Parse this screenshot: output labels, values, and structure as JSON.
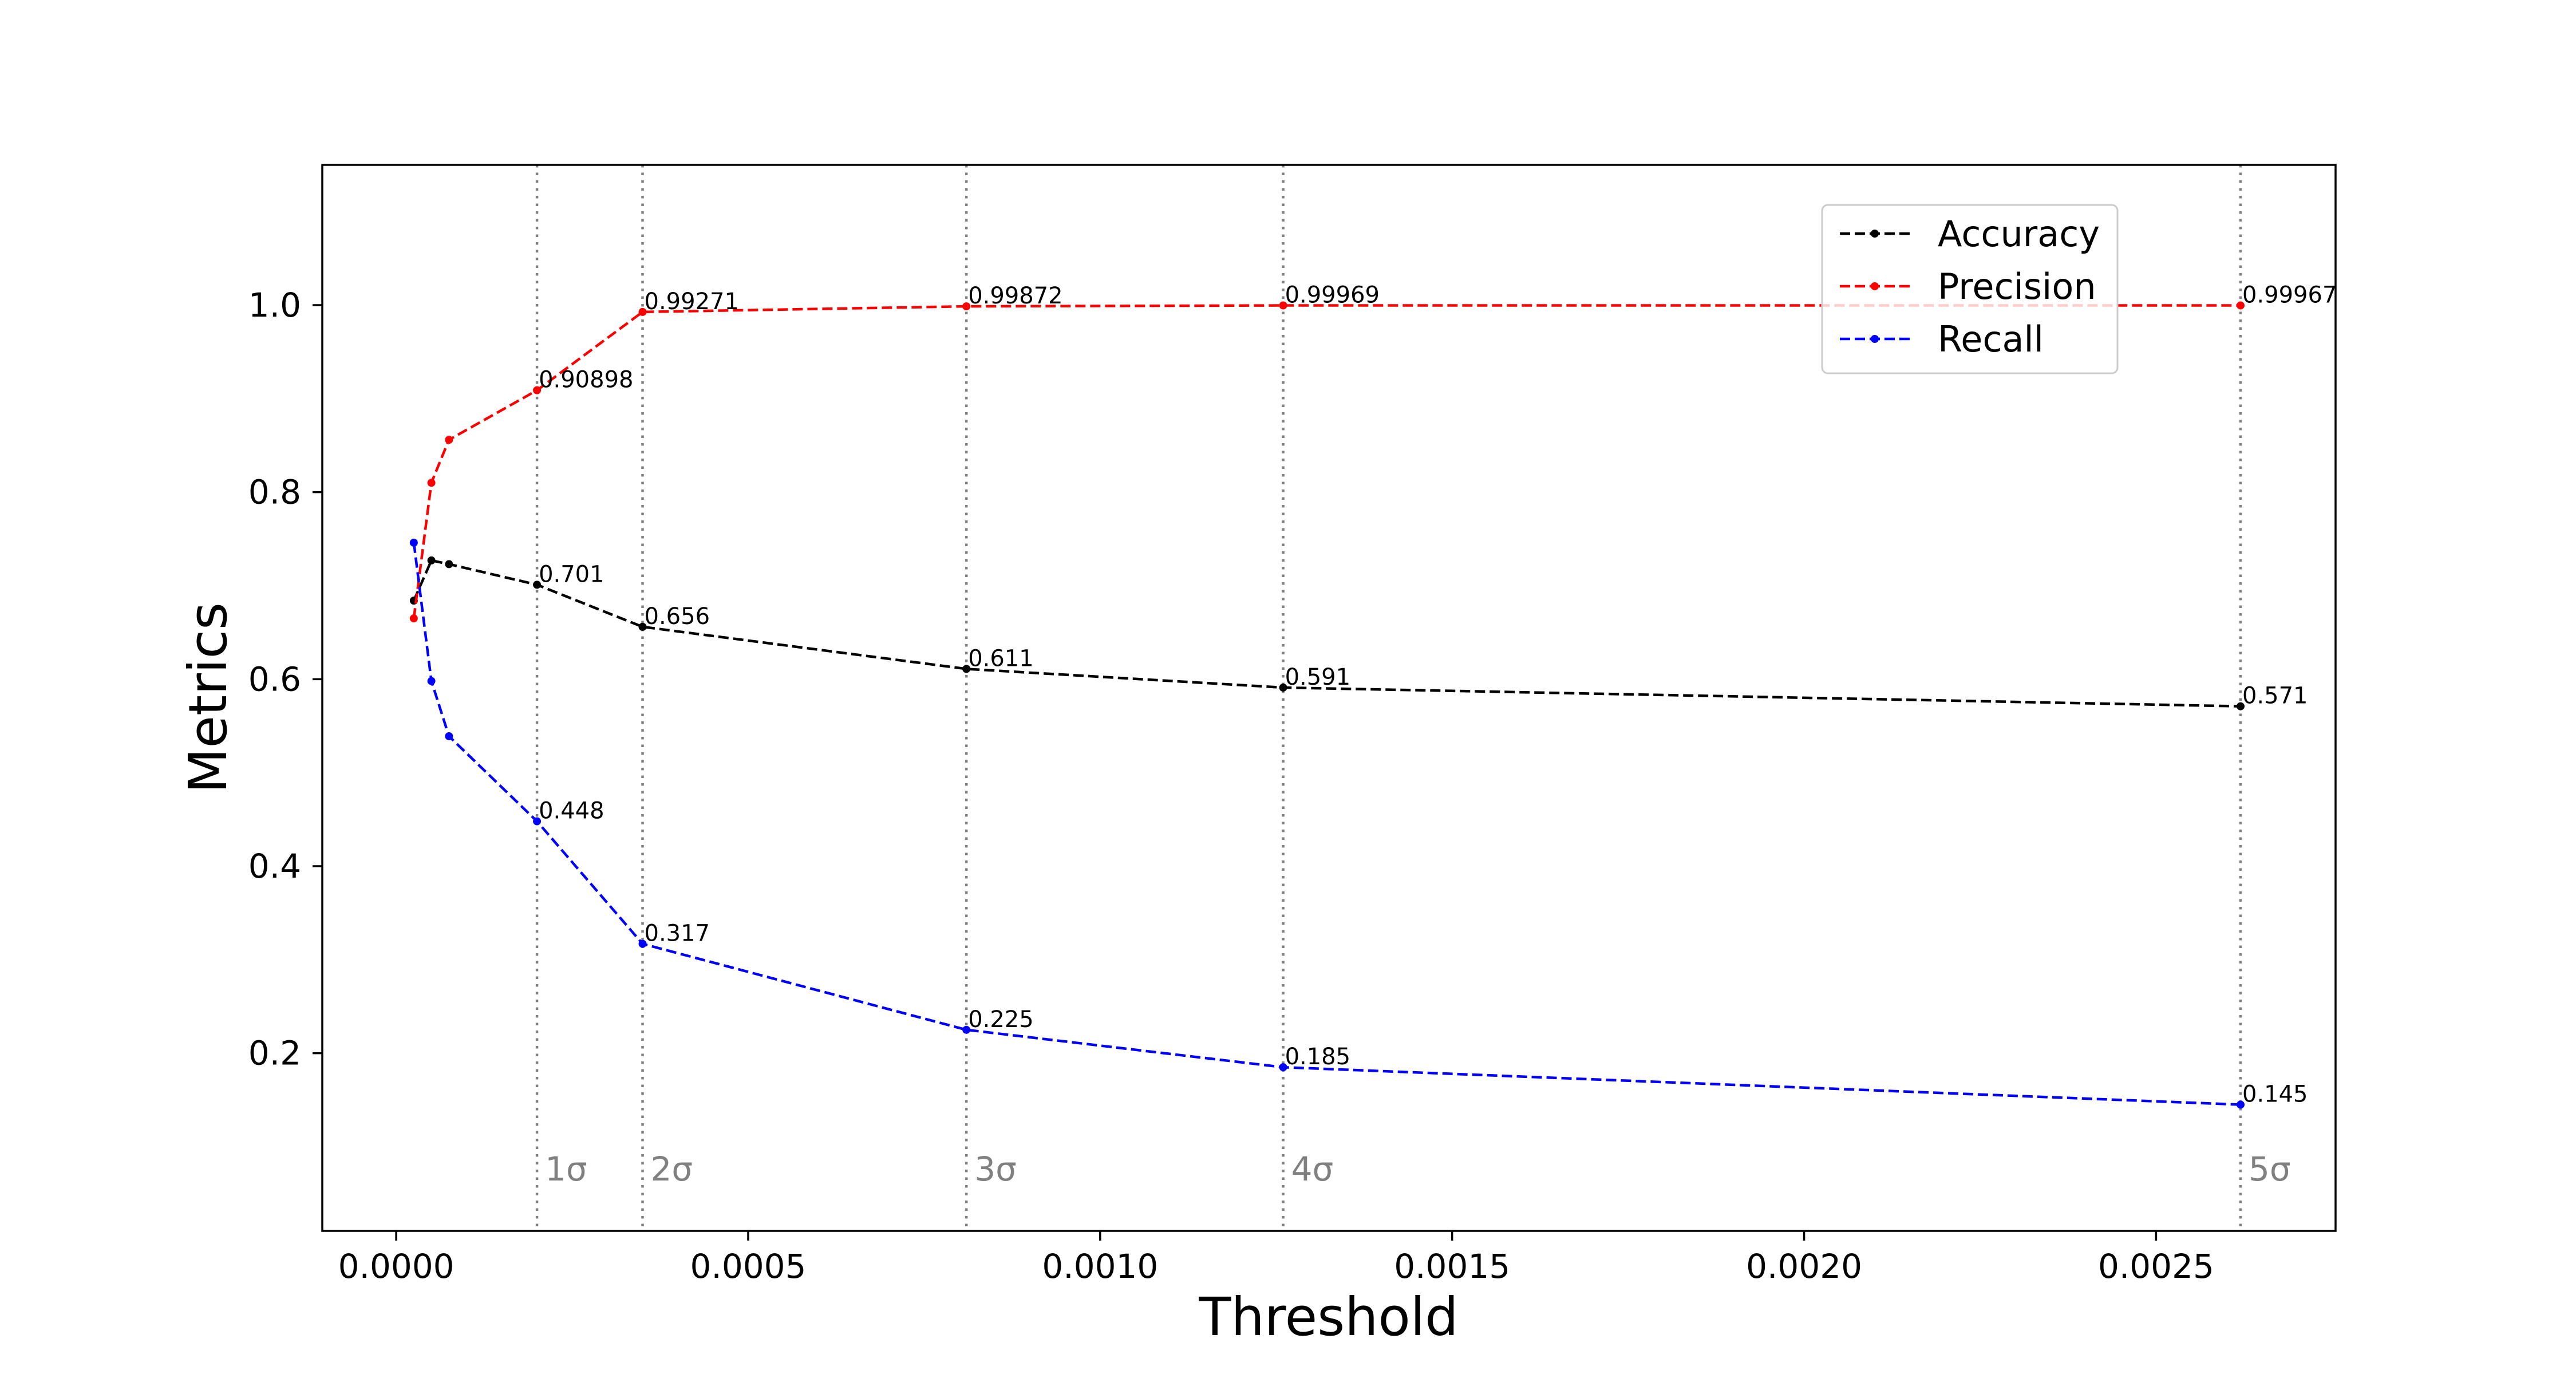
{
  "chart_data": {
    "type": "line",
    "title": "",
    "xlabel": "Threshold",
    "ylabel": "Metrics",
    "xlim": [
      -0.000105,
      0.002755
    ],
    "ylim": [
      0.01,
      1.15
    ],
    "xticks": [
      0.0,
      0.0005,
      0.001,
      0.0015,
      0.002,
      0.0025
    ],
    "xtick_labels": [
      "0.0000",
      "0.0005",
      "0.0010",
      "0.0015",
      "0.0020",
      "0.0025"
    ],
    "yticks": [
      0.2,
      0.4,
      0.6,
      0.8,
      1.0
    ],
    "ytick_labels": [
      "0.2",
      "0.4",
      "0.6",
      "0.8",
      "1.0"
    ],
    "grid": false,
    "legend_position": "top-right",
    "x": [
      2.5e-05,
      5e-05,
      7.5e-05,
      0.0002,
      0.00035,
      0.00081,
      0.00126,
      0.00262
    ],
    "series": [
      {
        "name": "Accuracy",
        "color": "#000000",
        "style": "dashed",
        "values": [
          0.684,
          0.727,
          0.723,
          0.701,
          0.656,
          0.611,
          0.591,
          0.571
        ],
        "point_labels": [
          "",
          "",
          "",
          "0.701",
          "0.656",
          "0.611",
          "0.591",
          "0.571"
        ]
      },
      {
        "name": "Precision",
        "color": "#ff0000",
        "style": "dashed",
        "values": [
          0.665,
          0.81,
          0.856,
          0.90898,
          0.99271,
          0.99872,
          0.99969,
          0.99967
        ],
        "point_labels": [
          "",
          "",
          "",
          "0.90898",
          "0.99271",
          "0.99872",
          "0.99969",
          "0.99967"
        ]
      },
      {
        "name": "Recall",
        "color": "#0000ff",
        "style": "dashed",
        "values": [
          0.746,
          0.598,
          0.539,
          0.448,
          0.317,
          0.225,
          0.185,
          0.145
        ],
        "point_labels": [
          "",
          "",
          "",
          "0.448",
          "0.317",
          "0.225",
          "0.185",
          "0.145"
        ]
      }
    ],
    "vlines": [
      {
        "x": 0.0002,
        "label": "1σ",
        "color": "#808080",
        "style": "dotted"
      },
      {
        "x": 0.00035,
        "label": "2σ",
        "color": "#808080",
        "style": "dotted"
      },
      {
        "x": 0.00081,
        "label": "3σ",
        "color": "#808080",
        "style": "dotted"
      },
      {
        "x": 0.00126,
        "label": "4σ",
        "color": "#808080",
        "style": "dotted"
      },
      {
        "x": 0.00262,
        "label": "5σ",
        "color": "#808080",
        "style": "dotted"
      }
    ]
  }
}
